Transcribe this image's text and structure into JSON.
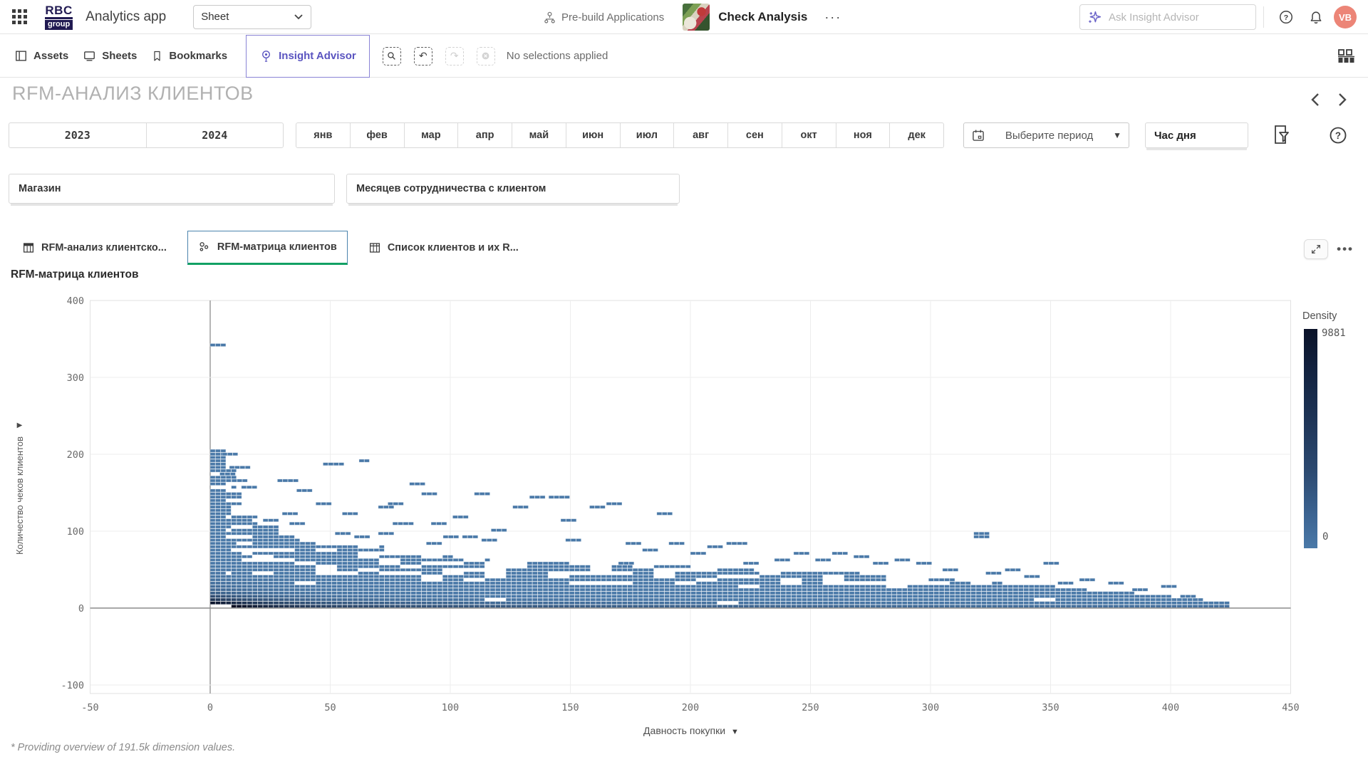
{
  "header": {
    "logo_line1": "RBC",
    "logo_line2": "group",
    "app_title": "Analytics app",
    "sheet_selector_value": "Sheet",
    "prebuild_label": "Pre-build Applications",
    "app_name": "Check Analysis",
    "more_menu": "···",
    "search_placeholder": "Ask Insight Advisor",
    "avatar_initials": "VB"
  },
  "toolbar": {
    "assets_label": "Assets",
    "sheets_label": "Sheets",
    "bookmarks_label": "Bookmarks",
    "insight_advisor_label": "Insight Advisor",
    "no_selections_label": "No selections applied"
  },
  "sheet": {
    "title": "RFM-АНАЛИЗ КЛИЕНТОВ"
  },
  "filters": {
    "years": [
      "2023",
      "2024"
    ],
    "months": [
      "янв",
      "фев",
      "мар",
      "апр",
      "май",
      "июн",
      "июл",
      "авг",
      "сен",
      "окт",
      "ноя",
      "дек"
    ],
    "period_placeholder": "Выберите период",
    "hour_filter_label": "Час дня",
    "store_filter_label": "Магазин",
    "cooperation_filter_label": "Месяцев сотрудничества с клиентом"
  },
  "tabs": [
    {
      "label": "RFM-анализ клиентско...",
      "icon": "table-icon",
      "active": false
    },
    {
      "label": "RFM-матрица клиентов",
      "icon": "scatter-icon",
      "active": true
    },
    {
      "label": "Список клиентов и их R...",
      "icon": "table-icon",
      "active": false
    }
  ],
  "colors": {
    "accent_purple": "#5a54c0",
    "avatar_bg": "#ec8577",
    "tab_active_border": "#4b84ad",
    "tab_active_underline": "#12a164",
    "heatmap_base": "#4a79a8",
    "heatmap_darkest": "#060b20"
  },
  "chart_data": {
    "type": "heatmap",
    "title": "RFM-матрица клиентов",
    "xlabel": "Давность покупки",
    "ylabel": "Количество чеков клиентов",
    "xlim": [
      -50,
      450
    ],
    "ylim": [
      -100,
      400
    ],
    "x_ticks": [
      -50,
      0,
      50,
      100,
      150,
      200,
      250,
      300,
      350,
      400,
      450
    ],
    "y_ticks": [
      400,
      300,
      200,
      100,
      0,
      -100
    ],
    "grid": true,
    "legend": {
      "title": "Density",
      "max": 9881,
      "min": 0,
      "position": "right",
      "color_max": "#0a1228",
      "color_min": "#4a79a8"
    },
    "cell_size": {
      "x": 2.2,
      "y": 4.3
    },
    "envelope": [
      [
        0,
        4.5,
        206
      ],
      [
        4.5,
        9,
        178
      ],
      [
        9,
        13,
        148
      ],
      [
        13,
        18,
        118
      ],
      [
        18,
        27,
        106
      ],
      [
        27,
        36,
        92
      ],
      [
        36,
        45,
        86
      ],
      [
        45,
        60,
        80
      ],
      [
        60,
        72,
        78
      ],
      [
        72,
        85,
        72
      ],
      [
        85,
        100,
        68
      ],
      [
        100,
        115,
        64
      ],
      [
        115,
        135,
        60
      ],
      [
        135,
        155,
        58
      ],
      [
        155,
        175,
        55
      ],
      [
        175,
        200,
        52
      ],
      [
        200,
        225,
        50
      ],
      [
        225,
        250,
        46
      ],
      [
        250,
        270,
        44
      ],
      [
        270,
        290,
        40
      ],
      [
        290,
        310,
        36
      ],
      [
        310,
        330,
        32
      ],
      [
        330,
        350,
        27
      ],
      [
        350,
        365,
        23
      ],
      [
        365,
        385,
        19
      ],
      [
        385,
        400,
        15
      ],
      [
        400,
        412,
        11
      ],
      [
        412,
        423,
        6
      ]
    ],
    "scatter": [
      [
        0,
        338,
        6
      ],
      [
        5,
        199,
        5
      ],
      [
        8,
        182,
        7
      ],
      [
        4,
        170,
        5
      ],
      [
        9,
        162,
        6
      ],
      [
        13,
        154,
        5
      ],
      [
        28,
        163,
        7
      ],
      [
        36,
        150,
        5
      ],
      [
        30,
        121,
        6
      ],
      [
        22,
        112,
        6
      ],
      [
        33,
        108,
        5
      ],
      [
        47,
        186,
        7
      ],
      [
        44,
        132,
        5
      ],
      [
        55,
        119,
        6
      ],
      [
        52,
        96,
        6
      ],
      [
        60,
        90,
        5
      ],
      [
        62,
        190,
        4
      ],
      [
        70,
        128,
        5
      ],
      [
        74,
        133,
        6
      ],
      [
        76,
        108,
        7
      ],
      [
        70,
        96,
        5
      ],
      [
        83,
        159,
        6
      ],
      [
        88,
        146,
        6
      ],
      [
        92,
        108,
        5
      ],
      [
        97,
        90,
        6
      ],
      [
        90,
        82,
        5
      ],
      [
        101,
        118,
        6
      ],
      [
        105,
        92,
        5
      ],
      [
        110,
        147,
        6
      ],
      [
        117,
        100,
        6
      ],
      [
        113,
        85,
        5
      ],
      [
        126,
        130,
        6
      ],
      [
        133,
        143,
        6
      ],
      [
        141,
        144,
        7
      ],
      [
        146,
        110,
        5
      ],
      [
        148,
        84,
        6
      ],
      [
        158,
        131,
        6
      ],
      [
        165,
        134,
        6
      ],
      [
        170,
        56,
        6
      ],
      [
        173,
        80,
        5
      ],
      [
        180,
        72,
        5
      ],
      [
        186,
        120,
        6
      ],
      [
        191,
        80,
        6
      ],
      [
        200,
        69,
        5
      ],
      [
        207,
        78,
        6
      ],
      [
        215,
        80,
        7
      ],
      [
        222,
        58,
        5
      ],
      [
        235,
        62,
        6
      ],
      [
        243,
        70,
        5
      ],
      [
        252,
        60,
        6
      ],
      [
        259,
        68,
        5
      ],
      [
        268,
        66,
        6
      ],
      [
        276,
        57,
        5
      ],
      [
        285,
        62,
        6
      ],
      [
        294,
        54,
        5
      ],
      [
        305,
        47,
        6
      ],
      [
        318,
        96,
        5
      ],
      [
        318,
        90,
        5
      ],
      [
        323,
        42,
        5
      ],
      [
        331,
        48,
        6
      ],
      [
        339,
        40,
        5
      ],
      [
        347,
        54,
        5
      ],
      [
        353,
        30,
        5
      ],
      [
        362,
        34,
        5
      ],
      [
        374,
        28,
        5
      ],
      [
        384,
        22,
        5
      ],
      [
        396,
        25,
        5
      ],
      [
        404,
        13,
        5
      ]
    ]
  },
  "footer": {
    "note": "* Providing overview of 191.5k dimension values."
  }
}
